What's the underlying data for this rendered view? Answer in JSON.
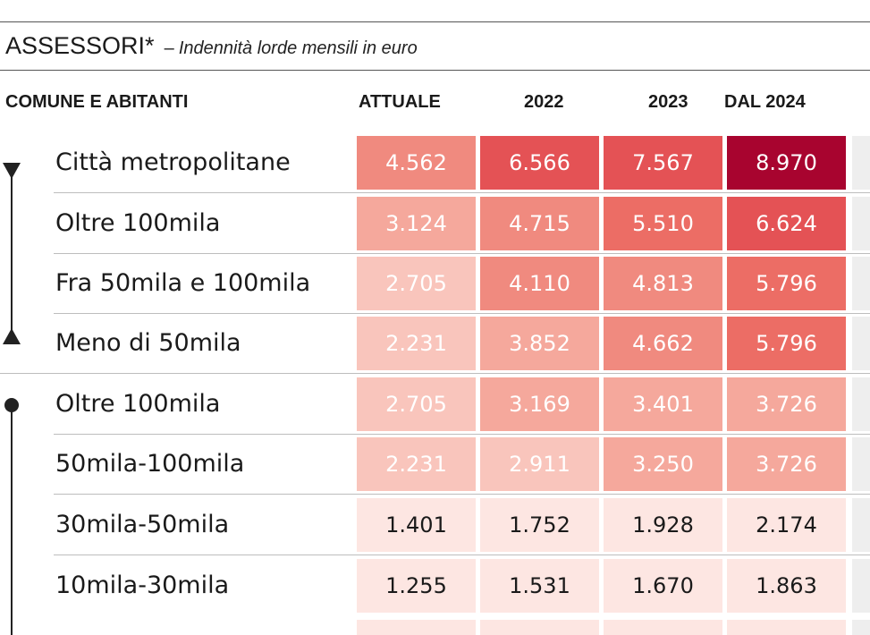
{
  "title": {
    "main": "ASSESSORI*",
    "separator": "–",
    "subtitle": "Indennità lorde mensili in euro"
  },
  "chart_data": {
    "type": "table",
    "title": "ASSESSORI*",
    "subtitle": "Indennità lorde mensili in euro",
    "columns": [
      "COMUNE E ABITANTI",
      "ATTUALE",
      "2022",
      "2023",
      "DAL 2024"
    ],
    "rows": [
      {
        "label": "Città metropolitane",
        "values": [
          "4.562",
          "6.566",
          "7.567",
          "8.970"
        ],
        "amounts": [
          4562,
          6566,
          7567,
          8970
        ]
      },
      {
        "label": "Oltre 100mila",
        "values": [
          "3.124",
          "4.715",
          "5.510",
          "6.624"
        ],
        "amounts": [
          3124,
          4715,
          5510,
          6624
        ]
      },
      {
        "label": "Fra 50mila e 100mila",
        "values": [
          "2.705",
          "4.110",
          "4.813",
          "5.796"
        ],
        "amounts": [
          2705,
          4110,
          4813,
          5796
        ]
      },
      {
        "label": "Meno di 50mila",
        "values": [
          "2.231",
          "3.852",
          "4.662",
          "5.796"
        ],
        "amounts": [
          2231,
          3852,
          4662,
          5796
        ]
      },
      {
        "label": "Oltre 100mila",
        "values": [
          "2.705",
          "3.169",
          "3.401",
          "3.726"
        ],
        "amounts": [
          2705,
          3169,
          3401,
          3726
        ]
      },
      {
        "label": "50mila-100mila",
        "values": [
          "2.231",
          "2.911",
          "3.250",
          "3.726"
        ],
        "amounts": [
          2231,
          2911,
          3250,
          3726
        ]
      },
      {
        "label": "30mila-50mila",
        "values": [
          "1.401",
          "1.752",
          "1.928",
          "2.174"
        ],
        "amounts": [
          1401,
          1752,
          1928,
          2174
        ]
      },
      {
        "label": "10mila-30mila",
        "values": [
          "1.255",
          "1.531",
          "1.670",
          "1.863"
        ],
        "amounts": [
          1255,
          1531,
          1670,
          1863
        ]
      }
    ],
    "colors": {
      "scale": [
        "#fde6e2",
        "#f9c5bc",
        "#f5a89c",
        "#f08a7f",
        "#ec6d65",
        "#e45255",
        "#a8042f"
      ],
      "text_dark": "#1a1a1a",
      "text_light": "#ffffff"
    }
  }
}
